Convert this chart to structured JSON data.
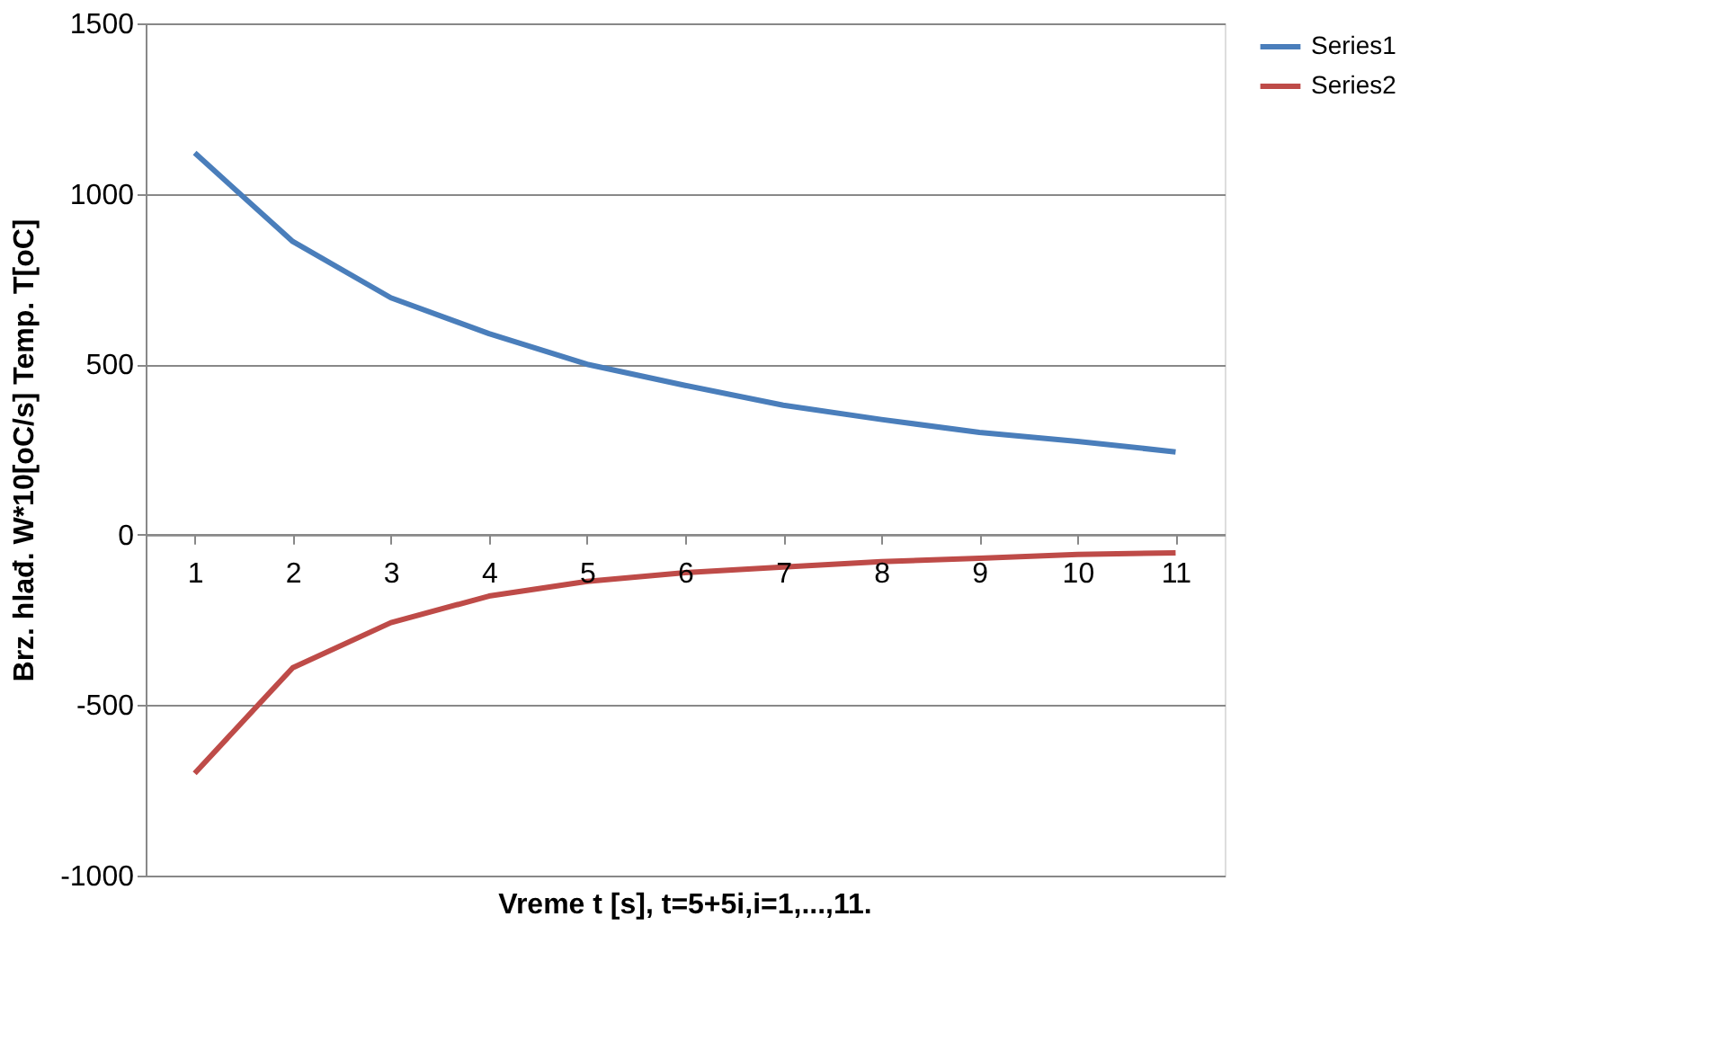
{
  "chart_data": {
    "type": "line",
    "xlabel": "Vreme t [s], t=5+5i,i=1,...,11.",
    "ylabel": "Brz. hlađ. W*10[oC/s]      Temp. T[oC]",
    "categories": [
      "1",
      "2",
      "3",
      "4",
      "5",
      "6",
      "7",
      "8",
      "9",
      "10",
      "11"
    ],
    "series": [
      {
        "name": "Series1",
        "color": "#4a7ebb",
        "values": [
          1120,
          860,
          695,
          590,
          500,
          438,
          380,
          338,
          300,
          274,
          243
        ]
      },
      {
        "name": "Series2",
        "color": "#be4b48",
        "values": [
          -700,
          -390,
          -258,
          -180,
          -137,
          -111,
          -95,
          -79,
          -69,
          -58,
          -53
        ]
      }
    ],
    "ylim": [
      -1000,
      1500
    ],
    "yticks": [
      -1000,
      -500,
      0,
      500,
      1000,
      1500
    ],
    "grid": "y",
    "legend": "right",
    "marker": "none",
    "line_style": "solid"
  }
}
